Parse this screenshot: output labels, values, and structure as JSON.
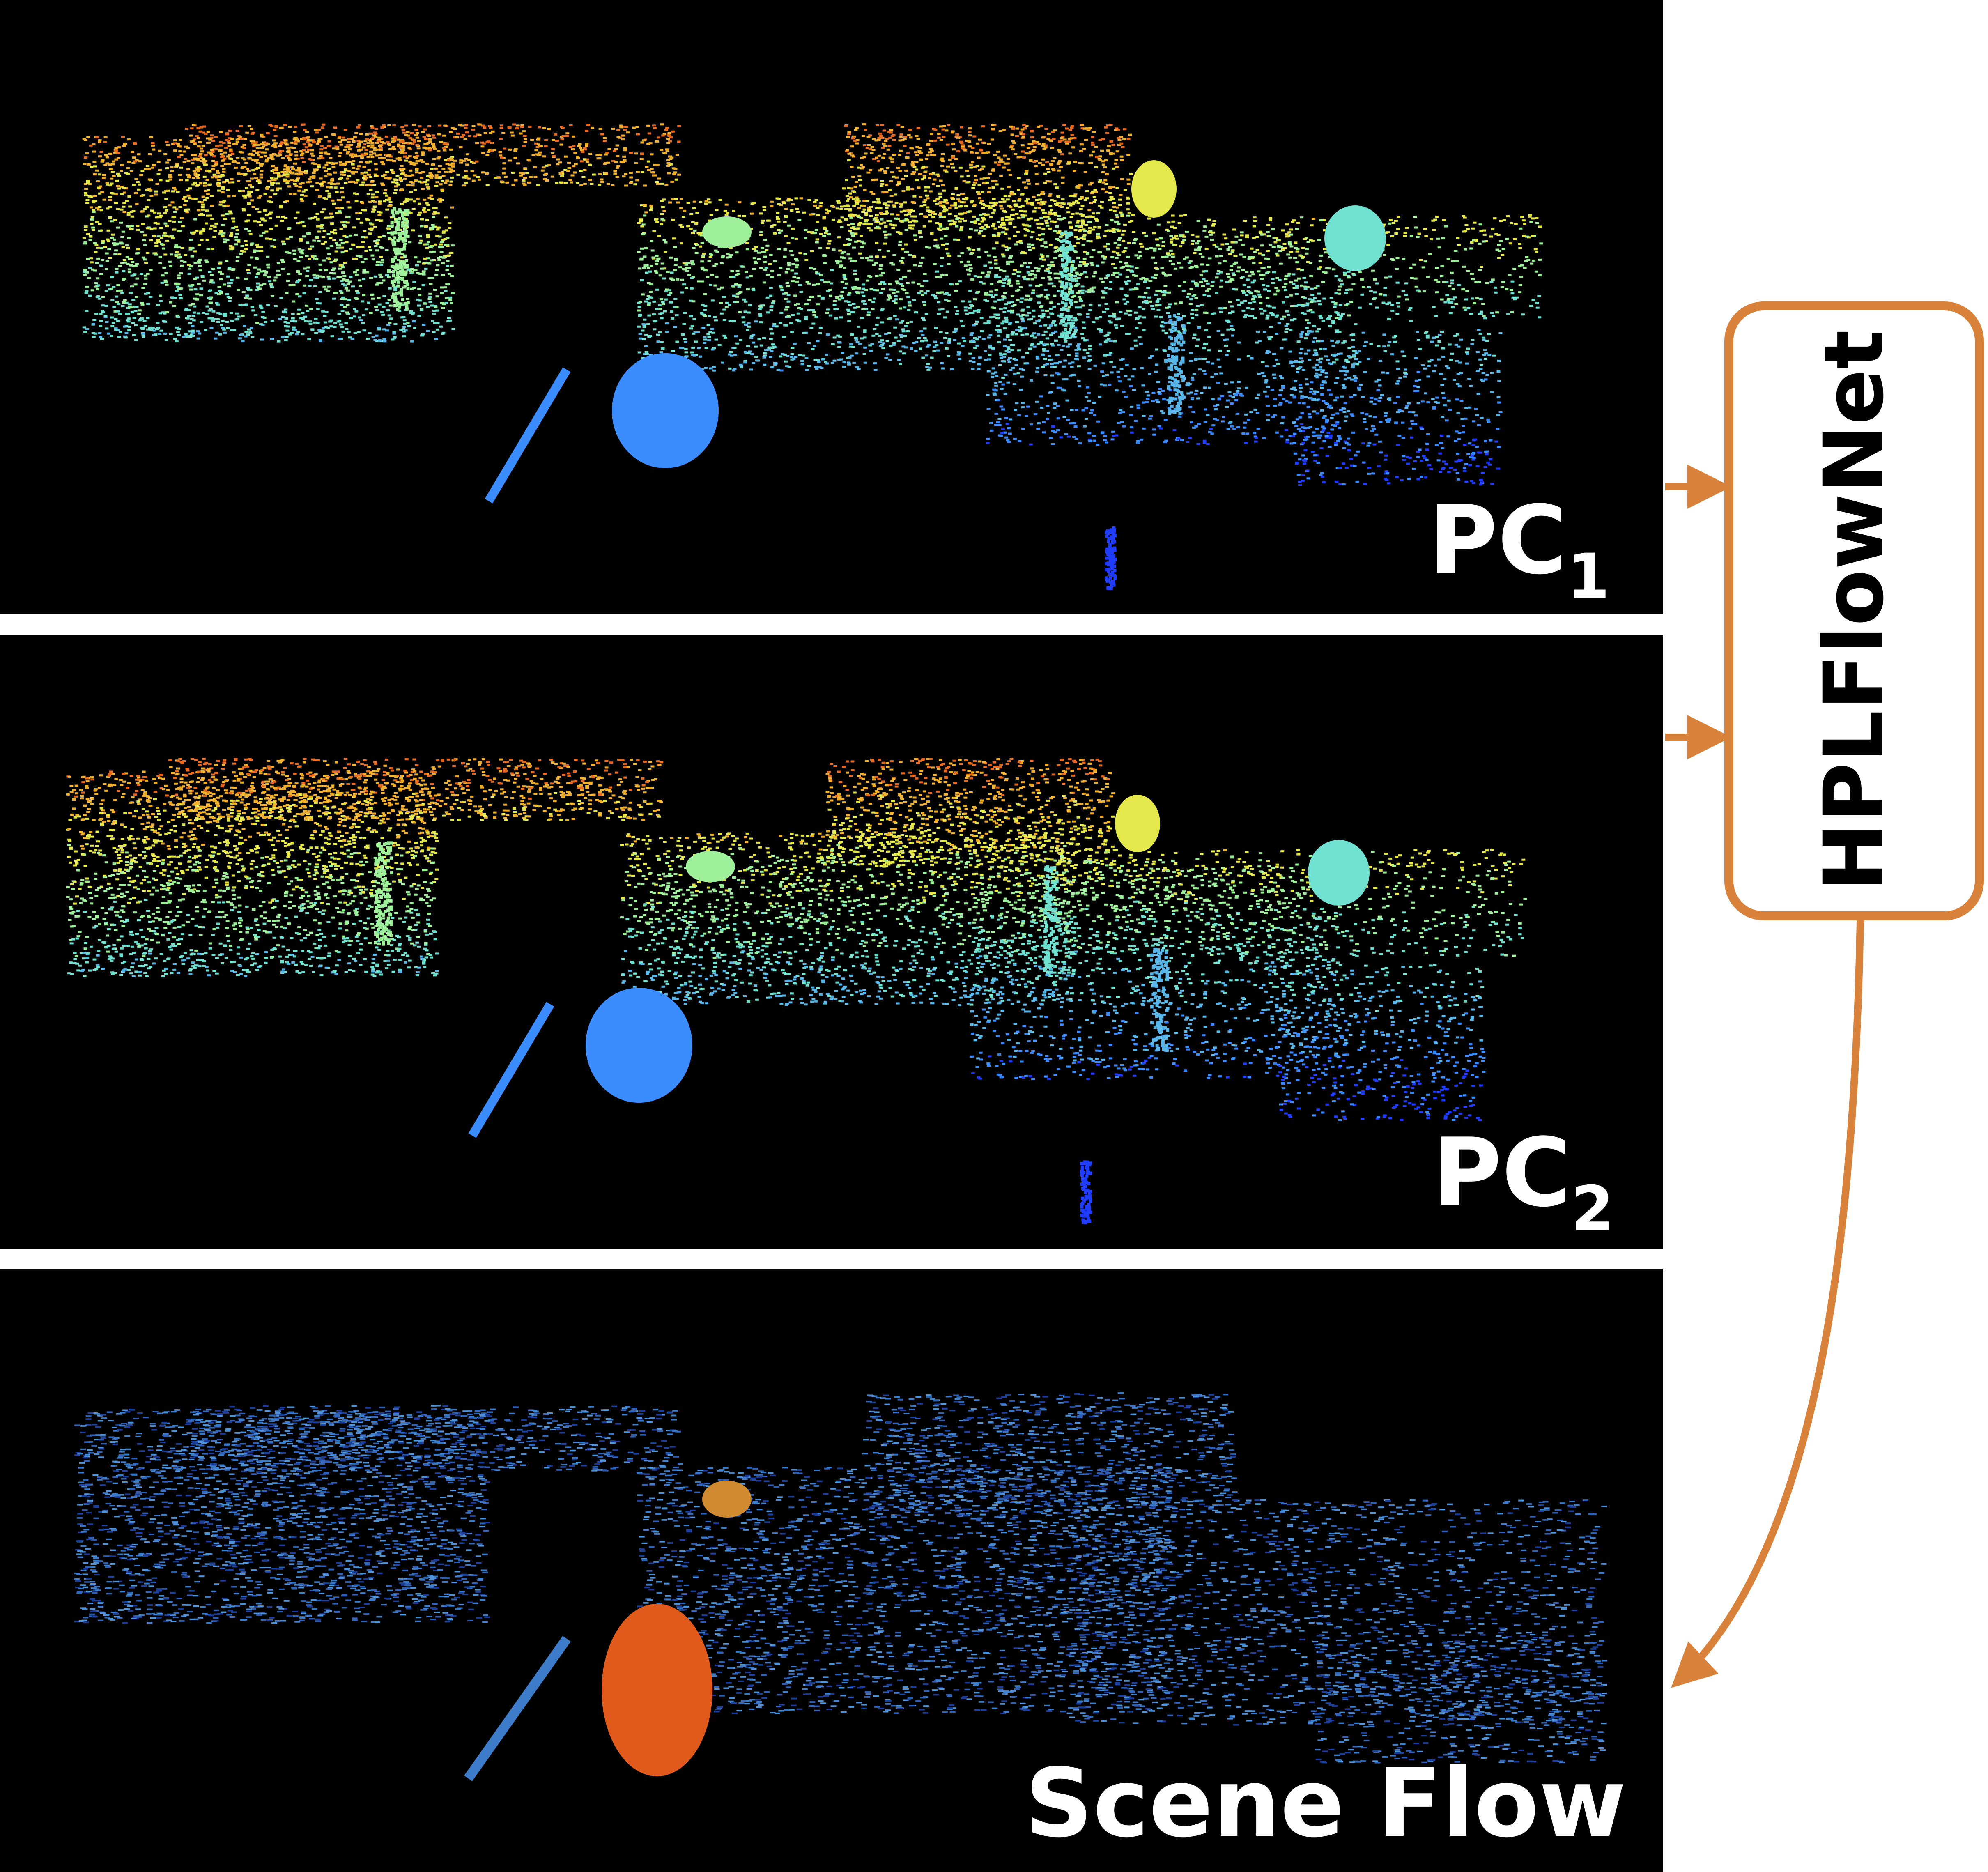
{
  "panels": [
    {
      "id": "pc1",
      "label": "PC",
      "subscript": "1"
    },
    {
      "id": "pc2",
      "label": "PC",
      "subscript": "2"
    },
    {
      "id": "flow",
      "label": "Scene Flow",
      "subscript": ""
    }
  ],
  "network": {
    "label": "HPLFlowNet"
  },
  "colors": {
    "accent": "#D9823B",
    "panel_background": "#000000",
    "label": "#ffffff",
    "network_text": "#000000",
    "pc_palette": [
      "#1f3cff",
      "#3b8cff",
      "#58b6e8",
      "#70e0d0",
      "#9ef09a",
      "#e5e84a",
      "#f0b030",
      "#e86a20"
    ],
    "flow_palette": [
      "#1c3f9a",
      "#2f63b8",
      "#3d7cc8",
      "#4f92d6"
    ],
    "flow_moving": "#e05a1c",
    "flow_distant_car": "#d08a30"
  }
}
